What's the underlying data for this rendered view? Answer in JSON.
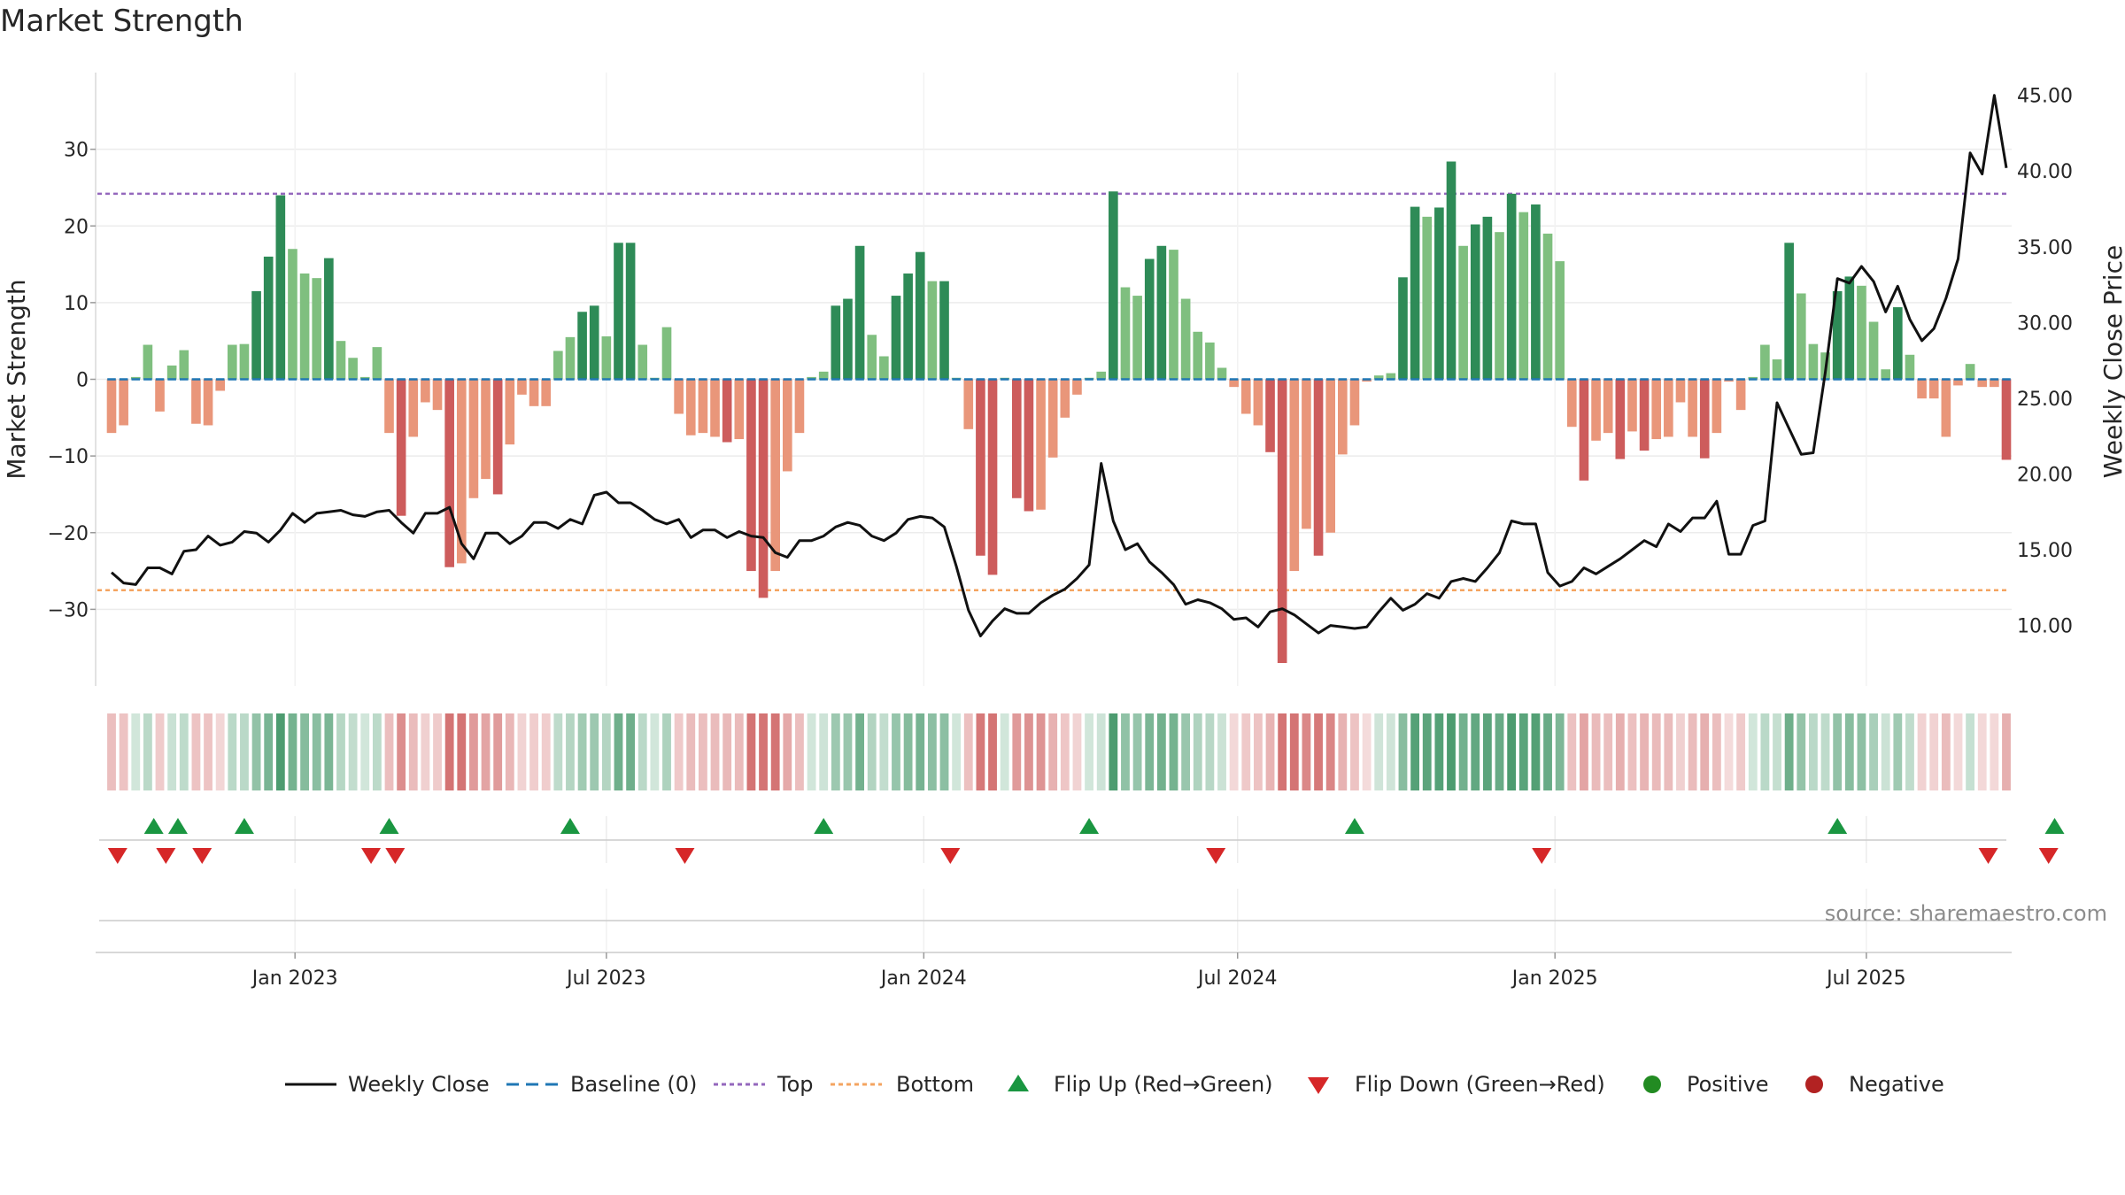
{
  "title": "Market Strength",
  "source_text": "source: sharemaestro.com",
  "colors": {
    "strong_pos": "#2e8b57",
    "weak_pos": "#7fbf7f",
    "strong_neg": "#cd5c5c",
    "weak_neg": "#e9967a",
    "close": "#111111",
    "baseline": "#1f77b4",
    "top": "#9467bd",
    "bottom": "#f4a460",
    "flip_up": "#1a9641",
    "flip_down": "#d62728",
    "positive": "#228b22",
    "negative": "#b22222"
  },
  "chart_data": {
    "type": "bar",
    "title": "Market Strength",
    "ylabel": "Market Strength",
    "y2label": "Weekly Close Price",
    "ylim": [
      -40,
      40
    ],
    "y2lim": [
      6.0,
      46.5
    ],
    "yticks": [
      30,
      20,
      10,
      0,
      -10,
      -20,
      -30
    ],
    "ytick_labels": [
      "30",
      "20",
      "10",
      "0",
      "−10",
      "−20",
      "−30"
    ],
    "y2ticks": [
      45,
      40,
      35,
      30,
      25,
      20,
      15,
      10
    ],
    "y2tick_labels": [
      "45.00",
      "40.00",
      "35.00",
      "30.00",
      "25.00",
      "20.00",
      "15.00",
      "10.00"
    ],
    "top_level": 24.2,
    "bottom_level": -27.5,
    "start_date": "2022-08-22",
    "x_ticks": [
      {
        "label": "Jan 2023",
        "week": 15.2
      },
      {
        "label": "Jul 2023",
        "week": 41.0
      },
      {
        "label": "Jan 2024",
        "week": 67.3
      },
      {
        "label": "Jul 2024",
        "week": 93.3
      },
      {
        "label": "Jan 2025",
        "week": 119.6
      },
      {
        "label": "Jul 2025",
        "week": 145.4
      }
    ],
    "strength": [
      -7.0,
      -6.0,
      0.3,
      4.5,
      -4.2,
      1.8,
      3.8,
      -5.8,
      -6.0,
      -1.5,
      4.5,
      4.6,
      11.5,
      16.0,
      24.0,
      17.0,
      13.8,
      13.2,
      15.8,
      5.0,
      2.8,
      0.3,
      4.2,
      -7.0,
      -17.8,
      -7.5,
      -3.0,
      -4.0,
      -24.5,
      -24.0,
      -15.5,
      -13.0,
      -15.0,
      -8.5,
      -2.0,
      -3.5,
      -3.5,
      3.7,
      5.5,
      8.8,
      9.6,
      5.6,
      17.8,
      17.8,
      4.5,
      0.2,
      6.8,
      -4.5,
      -7.3,
      -7.0,
      -7.5,
      -8.2,
      -7.8,
      -25.0,
      -28.5,
      -25.0,
      -12.0,
      -7.0,
      0.3,
      1.0,
      9.6,
      10.5,
      17.4,
      5.8,
      3.0,
      10.9,
      13.8,
      16.6,
      12.8,
      12.8,
      0.2,
      -6.5,
      -23.0,
      -25.5,
      0.2,
      -15.5,
      -17.2,
      -17.0,
      -10.2,
      -5.0,
      -2.0,
      0.2,
      1.0,
      24.5,
      12.0,
      10.9,
      15.7,
      17.4,
      16.9,
      10.5,
      6.2,
      4.8,
      1.5,
      -1.0,
      -4.5,
      -6.0,
      -9.5,
      -37.0,
      -25.0,
      -19.5,
      -23.0,
      -20.0,
      -9.8,
      -6.0,
      -0.3,
      0.5,
      0.8,
      13.3,
      22.5,
      21.2,
      22.4,
      28.4,
      17.4,
      20.2,
      21.2,
      19.2,
      24.2,
      21.8,
      22.8,
      19.0,
      15.4,
      -6.2,
      -13.2,
      -8.0,
      -7.0,
      -10.4,
      -6.8,
      -9.3,
      -7.8,
      -7.5,
      -3.0,
      -7.5,
      -10.3,
      -7.0,
      -0.3,
      -4.0,
      0.3,
      4.5,
      2.6,
      17.8,
      11.2,
      4.6,
      3.5,
      11.5,
      13.4,
      12.2,
      7.5,
      1.3,
      9.4,
      3.2,
      -2.5,
      -2.5,
      -7.5,
      -0.8,
      2.0,
      -1.0,
      -1.0,
      -10.5
    ],
    "close": [
      13.5,
      12.8,
      12.7,
      13.8,
      13.8,
      13.4,
      14.9,
      15.0,
      15.9,
      15.3,
      15.5,
      16.2,
      16.1,
      15.5,
      16.3,
      17.4,
      16.8,
      17.4,
      17.5,
      17.6,
      17.3,
      17.2,
      17.5,
      17.6,
      16.8,
      16.1,
      17.4,
      17.4,
      17.8,
      15.4,
      14.4,
      16.1,
      16.1,
      15.4,
      15.9,
      16.8,
      16.8,
      16.4,
      17.0,
      16.7,
      18.6,
      18.8,
      18.1,
      18.1,
      17.6,
      17.0,
      16.7,
      17.0,
      15.8,
      16.3,
      16.3,
      15.8,
      16.2,
      15.9,
      15.8,
      14.8,
      14.5,
      15.6,
      15.6,
      15.9,
      16.5,
      16.8,
      16.6,
      15.9,
      15.6,
      16.1,
      17.0,
      17.2,
      17.1,
      16.5,
      13.9,
      11.0,
      9.3,
      10.3,
      11.1,
      10.8,
      10.8,
      11.5,
      12.0,
      12.4,
      13.1,
      14.0,
      20.7,
      16.9,
      15.0,
      15.4,
      14.2,
      13.5,
      12.7,
      11.4,
      11.7,
      11.5,
      11.1,
      10.4,
      10.5,
      9.9,
      10.9,
      11.1,
      10.7,
      10.1,
      9.5,
      10.0,
      9.9,
      9.8,
      9.9,
      10.9,
      11.8,
      11.0,
      11.4,
      12.1,
      11.8,
      12.9,
      13.1,
      12.9,
      13.8,
      14.8,
      16.9,
      16.7,
      16.7,
      13.5,
      12.6,
      12.9,
      13.8,
      13.4,
      13.9,
      14.4,
      15.0,
      15.6,
      15.2,
      16.7,
      16.2,
      17.1,
      17.1,
      18.2,
      14.7,
      14.7,
      16.6,
      16.9,
      24.7,
      23.0,
      21.3,
      21.4,
      26.7,
      32.9,
      32.6,
      33.7,
      32.7,
      30.7,
      32.4,
      30.2,
      28.8,
      29.6,
      31.6,
      34.2,
      41.2,
      39.8,
      45.0,
      40.2
    ],
    "flip_up": [
      3.5,
      5.5,
      11.0,
      23.0,
      38.0,
      59.0,
      81.0,
      103.0,
      143.0,
      161.0
    ],
    "flip_down": [
      0.5,
      4.5,
      7.5,
      21.5,
      23.5,
      47.5,
      69.5,
      91.5,
      118.5,
      155.5,
      160.5
    ],
    "legend": [
      {
        "key": "close",
        "label": "Weekly Close"
      },
      {
        "key": "baseline",
        "label": "Baseline (0)"
      },
      {
        "key": "top",
        "label": "Top"
      },
      {
        "key": "bottom",
        "label": "Bottom"
      },
      {
        "key": "flip_up",
        "label": "Flip Up (Red→Green)"
      },
      {
        "key": "flip_down",
        "label": "Flip Down (Green→Red)"
      },
      {
        "key": "positive",
        "label": "Positive"
      },
      {
        "key": "negative",
        "label": "Negative"
      }
    ],
    "legend_position": "bottom-center",
    "grid": true
  }
}
